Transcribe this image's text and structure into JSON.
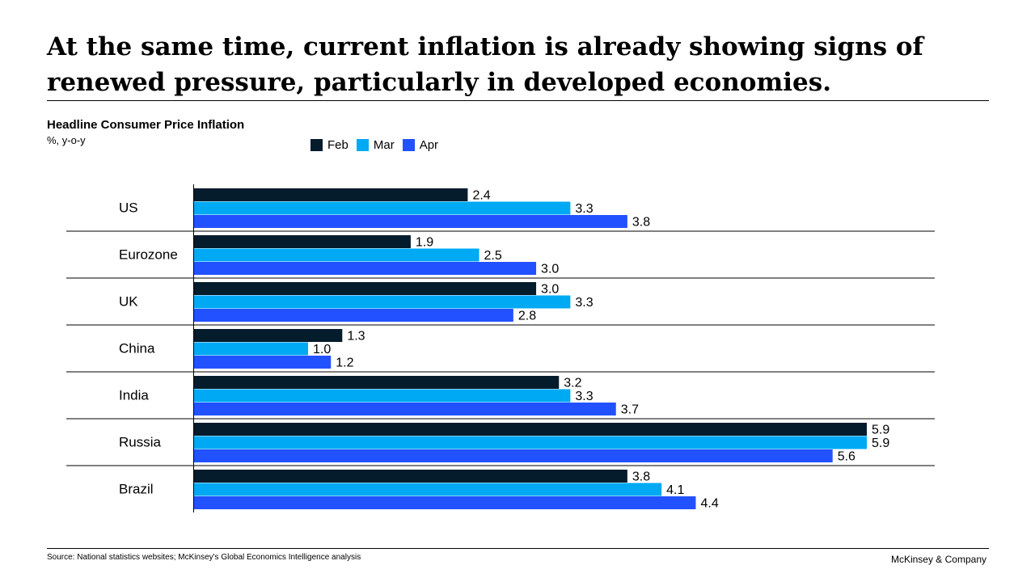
{
  "page": {
    "title": "At the same time, current inflation is already showing signs of renewed pressure, particularly in developed economies.",
    "source": "Source: National statistics websites; McKinsey's Global Economics Intelligence analysis",
    "brand": "McKinsey & Company"
  },
  "colors": {
    "feb": "#051c2c",
    "mar": "#00a9f4",
    "apr": "#2251ff"
  },
  "chart_data": {
    "type": "bar",
    "orientation": "horizontal",
    "title": "Headline Consumer Price Inflation",
    "unit": "%, y-o-y",
    "legend_position": "top",
    "categories": [
      "US",
      "Eurozone",
      "UK",
      "China",
      "India",
      "Russia",
      "Brazil"
    ],
    "series": [
      {
        "name": "Feb",
        "values": [
          2.4,
          1.9,
          3.0,
          1.3,
          3.2,
          5.9,
          3.8
        ]
      },
      {
        "name": "Mar",
        "values": [
          3.3,
          2.5,
          3.3,
          1.0,
          3.3,
          5.9,
          4.1
        ]
      },
      {
        "name": "Apr",
        "values": [
          3.8,
          3.0,
          2.8,
          1.2,
          3.7,
          5.6,
          4.4
        ]
      }
    ],
    "data_labels": [
      [
        "2.4",
        "1.9",
        "3.0",
        "1.3",
        "3.2",
        "5.9",
        "3.8"
      ],
      [
        "3.3",
        "2.5",
        "3.3",
        "1.0",
        "3.3",
        "5.9",
        "4.1"
      ],
      [
        "3.8",
        "3.0",
        "2.8",
        "1.2",
        "3.7",
        "5.6",
        "4.4"
      ]
    ],
    "xlim": [
      0,
      5.9
    ],
    "grid": false
  }
}
